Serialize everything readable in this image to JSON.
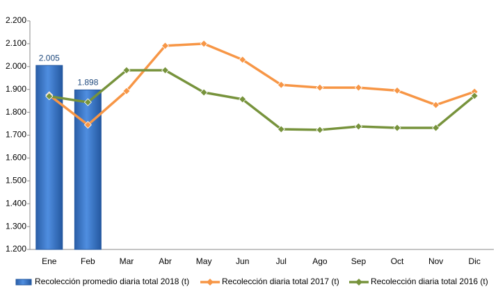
{
  "chart_data": {
    "type": "bar",
    "categories": [
      "Ene",
      "Feb",
      "Mar",
      "Abr",
      "May",
      "Jun",
      "Jul",
      "Ago",
      "Sep",
      "Oct",
      "Nov",
      "Dic"
    ],
    "series": [
      {
        "name": "Recolección promedio diaria total 2018 (t)",
        "type": "bar",
        "color": "#3a78c8",
        "values": [
          2005,
          1898,
          null,
          null,
          null,
          null,
          null,
          null,
          null,
          null,
          null,
          null
        ],
        "value_labels": [
          "2.005",
          "1.898",
          null,
          null,
          null,
          null,
          null,
          null,
          null,
          null,
          null,
          null
        ]
      },
      {
        "name": "Recolección diaria total 2017 (t)",
        "type": "line",
        "color": "#f79646",
        "values": [
          1875,
          1745,
          1893,
          2091,
          2100,
          2030,
          1920,
          1908,
          1908,
          1895,
          1832,
          1890
        ]
      },
      {
        "name": "Recolección diaria total 2016 (t)",
        "type": "line",
        "color": "#77933c",
        "values": [
          1870,
          1844,
          1984,
          1984,
          1887,
          1857,
          1726,
          1723,
          1738,
          1732,
          1732,
          1872
        ]
      }
    ],
    "ylim": [
      1200,
      2200
    ],
    "yticks": [
      {
        "value": 1200,
        "label": "1.200"
      },
      {
        "value": 1300,
        "label": "1.300"
      },
      {
        "value": 1400,
        "label": "1.400"
      },
      {
        "value": 1500,
        "label": "1.500"
      },
      {
        "value": 1600,
        "label": "1.600"
      },
      {
        "value": 1700,
        "label": "1.700"
      },
      {
        "value": 1800,
        "label": "1.800"
      },
      {
        "value": 1900,
        "label": "1.900"
      },
      {
        "value": 2000,
        "label": "2.000"
      },
      {
        "value": 2100,
        "label": "2.100"
      },
      {
        "value": 2200,
        "label": "2.200"
      }
    ],
    "grid": false,
    "legend": "bottom"
  }
}
